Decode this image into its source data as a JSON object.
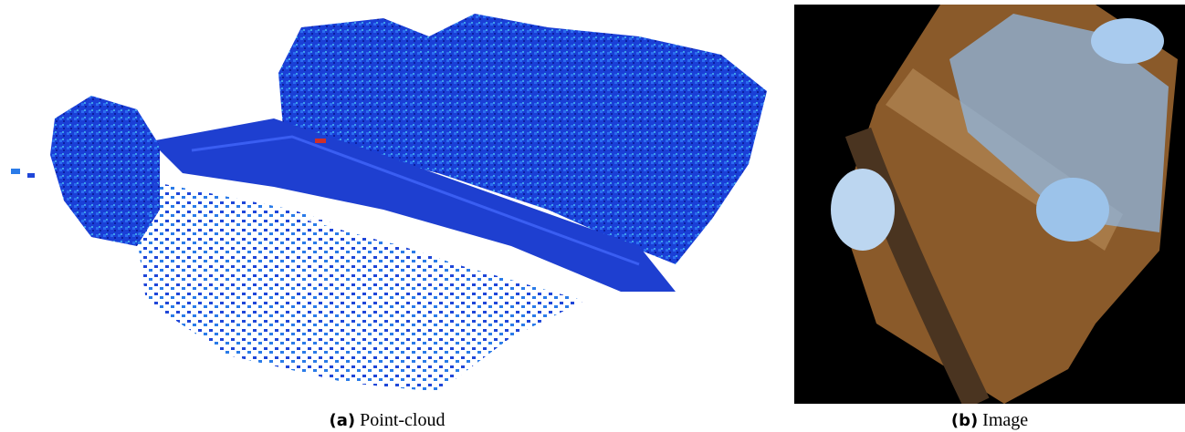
{
  "figure": {
    "subfigures": [
      {
        "label": "(a)",
        "caption": "Point-cloud"
      },
      {
        "label": "(b)",
        "caption": "Image"
      }
    ]
  }
}
